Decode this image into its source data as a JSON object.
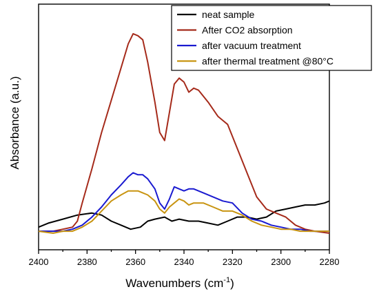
{
  "chart_data": {
    "type": "line",
    "title": "",
    "xlabel": "Wavenumbers (cm",
    "xlabel_sup": "-1",
    "xlabel_close": ")",
    "ylabel": "Absorbance (a.u.)",
    "xlim": [
      2400,
      2280
    ],
    "ylim": [
      0,
      100
    ],
    "x_reversed": true,
    "y_ticks_shown": false,
    "grid": false,
    "legend_position": "top-right",
    "x_ticks": [
      2400,
      2380,
      2360,
      2340,
      2320,
      2300,
      2280
    ],
    "series": [
      {
        "name": "neat sample",
        "color": "#000000",
        "points": [
          [
            2400,
            3
          ],
          [
            2396,
            5
          ],
          [
            2390,
            7
          ],
          [
            2384,
            9
          ],
          [
            2378,
            10
          ],
          [
            2374,
            9
          ],
          [
            2370,
            6
          ],
          [
            2366,
            4
          ],
          [
            2362,
            2
          ],
          [
            2358,
            3
          ],
          [
            2355,
            6
          ],
          [
            2352,
            7
          ],
          [
            2348,
            8
          ],
          [
            2345,
            6
          ],
          [
            2342,
            7
          ],
          [
            2338,
            6
          ],
          [
            2334,
            6
          ],
          [
            2330,
            5
          ],
          [
            2326,
            4
          ],
          [
            2322,
            6
          ],
          [
            2318,
            8
          ],
          [
            2314,
            8
          ],
          [
            2310,
            7
          ],
          [
            2306,
            8
          ],
          [
            2302,
            11
          ],
          [
            2298,
            12
          ],
          [
            2294,
            13
          ],
          [
            2290,
            14
          ],
          [
            2286,
            14
          ],
          [
            2282,
            15
          ],
          [
            2280,
            16
          ]
        ]
      },
      {
        "name": "After CO2 absorption",
        "color": "#a52a1a",
        "points": [
          [
            2400,
            1
          ],
          [
            2394,
            1
          ],
          [
            2390,
            2
          ],
          [
            2386,
            3
          ],
          [
            2384,
            6
          ],
          [
            2382,
            15
          ],
          [
            2378,
            32
          ],
          [
            2374,
            50
          ],
          [
            2370,
            66
          ],
          [
            2366,
            82
          ],
          [
            2363,
            94
          ],
          [
            2361,
            99
          ],
          [
            2359,
            98
          ],
          [
            2357,
            96
          ],
          [
            2355,
            85
          ],
          [
            2352,
            65
          ],
          [
            2350,
            50
          ],
          [
            2348,
            46
          ],
          [
            2346,
            60
          ],
          [
            2344,
            74
          ],
          [
            2342,
            77
          ],
          [
            2340,
            75
          ],
          [
            2338,
            70
          ],
          [
            2336,
            72
          ],
          [
            2334,
            71
          ],
          [
            2330,
            65
          ],
          [
            2326,
            58
          ],
          [
            2324,
            56
          ],
          [
            2322,
            54
          ],
          [
            2318,
            42
          ],
          [
            2314,
            30
          ],
          [
            2310,
            18
          ],
          [
            2306,
            12
          ],
          [
            2302,
            10
          ],
          [
            2298,
            8
          ],
          [
            2294,
            4
          ],
          [
            2290,
            2
          ],
          [
            2286,
            1
          ],
          [
            2280,
            0
          ]
        ]
      },
      {
        "name": "after vacuum treatment",
        "color": "#1a1ad0",
        "points": [
          [
            2400,
            1
          ],
          [
            2394,
            1
          ],
          [
            2390,
            1
          ],
          [
            2386,
            2
          ],
          [
            2382,
            4
          ],
          [
            2378,
            8
          ],
          [
            2374,
            13
          ],
          [
            2370,
            19
          ],
          [
            2366,
            24
          ],
          [
            2363,
            28
          ],
          [
            2361,
            30
          ],
          [
            2359,
            29
          ],
          [
            2357,
            29
          ],
          [
            2355,
            27
          ],
          [
            2352,
            22
          ],
          [
            2350,
            15
          ],
          [
            2348,
            12
          ],
          [
            2346,
            17
          ],
          [
            2344,
            23
          ],
          [
            2342,
            22
          ],
          [
            2340,
            21
          ],
          [
            2338,
            22
          ],
          [
            2336,
            22
          ],
          [
            2332,
            20
          ],
          [
            2328,
            18
          ],
          [
            2324,
            16
          ],
          [
            2320,
            15
          ],
          [
            2316,
            10
          ],
          [
            2312,
            7
          ],
          [
            2308,
            6
          ],
          [
            2304,
            4
          ],
          [
            2300,
            3
          ],
          [
            2296,
            2
          ],
          [
            2292,
            2
          ],
          [
            2288,
            1
          ],
          [
            2284,
            1
          ],
          [
            2280,
            1
          ]
        ]
      },
      {
        "name": "after thermal treatment @80°C",
        "color": "#c89410",
        "points": [
          [
            2400,
            1
          ],
          [
            2394,
            0
          ],
          [
            2390,
            1
          ],
          [
            2386,
            1
          ],
          [
            2382,
            3
          ],
          [
            2378,
            6
          ],
          [
            2374,
            11
          ],
          [
            2370,
            16
          ],
          [
            2366,
            19
          ],
          [
            2363,
            21
          ],
          [
            2361,
            21
          ],
          [
            2359,
            21
          ],
          [
            2357,
            20
          ],
          [
            2355,
            19
          ],
          [
            2352,
            16
          ],
          [
            2350,
            12
          ],
          [
            2348,
            10
          ],
          [
            2346,
            13
          ],
          [
            2344,
            15
          ],
          [
            2342,
            17
          ],
          [
            2340,
            16
          ],
          [
            2338,
            14
          ],
          [
            2336,
            15
          ],
          [
            2332,
            15
          ],
          [
            2328,
            13
          ],
          [
            2324,
            11
          ],
          [
            2320,
            11
          ],
          [
            2316,
            9
          ],
          [
            2312,
            6
          ],
          [
            2308,
            4
          ],
          [
            2304,
            3
          ],
          [
            2300,
            2
          ],
          [
            2296,
            2
          ],
          [
            2292,
            1
          ],
          [
            2288,
            1
          ],
          [
            2284,
            1
          ],
          [
            2280,
            1
          ]
        ]
      }
    ]
  }
}
